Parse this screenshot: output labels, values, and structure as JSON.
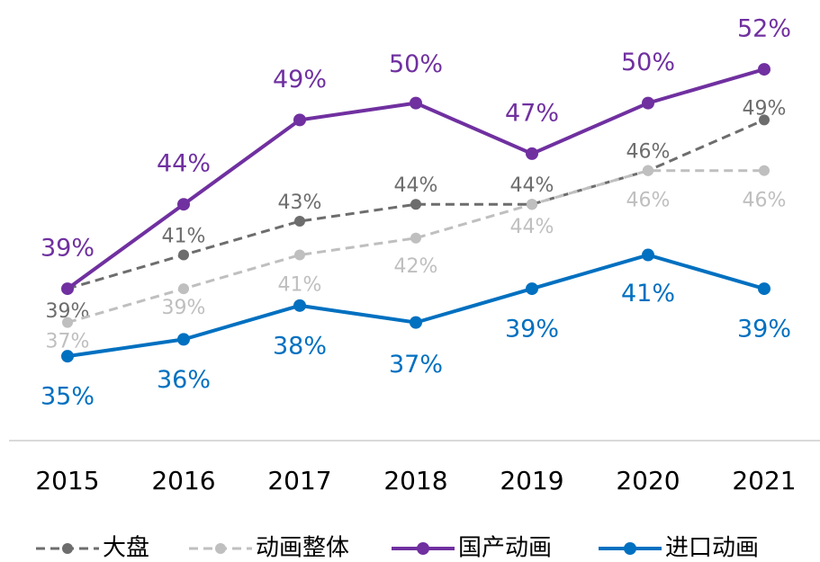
{
  "chart_data": {
    "type": "line",
    "categories": [
      "2015",
      "2016",
      "2017",
      "2018",
      "2019",
      "2020",
      "2021"
    ],
    "ylim": [
      30,
      56
    ],
    "series": [
      {
        "name": "大盘",
        "color": "#6d6d6d",
        "dashed": true,
        "values": [
          39,
          41,
          43,
          44,
          44,
          46,
          49
        ],
        "value_labels": [
          "39%",
          "41%",
          "43%",
          "44%",
          "44%",
          "46%",
          "49%"
        ]
      },
      {
        "name": "动画整体",
        "color": "#bfbfbf",
        "dashed": true,
        "values": [
          37,
          39,
          41,
          42,
          44,
          46,
          46
        ],
        "value_labels": [
          "37%",
          "39%",
          "41%",
          "42%",
          "44%",
          "46%",
          "46%"
        ]
      },
      {
        "name": "国产动画",
        "color": "#7030a0",
        "dashed": false,
        "values": [
          39,
          44,
          49,
          50,
          47,
          50,
          52
        ],
        "value_labels": [
          "39%",
          "44%",
          "49%",
          "50%",
          "47%",
          "50%",
          "52%"
        ]
      },
      {
        "name": "进口动画",
        "color": "#0070c0",
        "dashed": false,
        "values": [
          35,
          36,
          38,
          37,
          39,
          41,
          39
        ],
        "value_labels": [
          "35%",
          "36%",
          "38%",
          "37%",
          "39%",
          "41%",
          "39%"
        ]
      }
    ]
  }
}
